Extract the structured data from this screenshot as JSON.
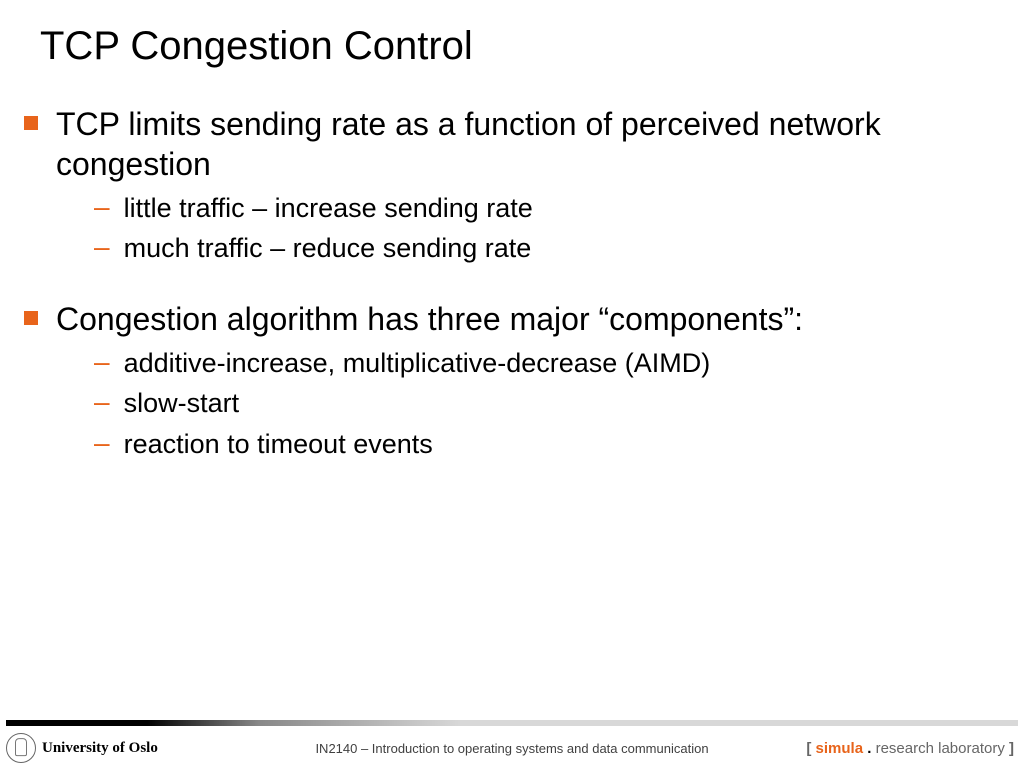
{
  "colors": {
    "accent": "#e8641b",
    "text": "#000000",
    "footer_text": "#404040",
    "background": "#ffffff"
  },
  "typography": {
    "title_fontsize": 40,
    "l1_fontsize": 32,
    "l2_fontsize": 27,
    "footer_fontsize": 13
  },
  "title": "TCP Congestion Control",
  "bullets": [
    {
      "text": "TCP limits sending rate as a function of perceived network congestion",
      "sub": [
        "little traffic – increase sending rate",
        "much traffic – reduce sending rate"
      ]
    },
    {
      "text": "Congestion algorithm has three major “components”:",
      "sub": [
        "additive-increase, multiplicative-decrease (AIMD)",
        "slow-start",
        "reaction to timeout events"
      ]
    }
  ],
  "footer": {
    "university": "University of Oslo",
    "course": "IN2140 – Introduction to operating systems and data communication",
    "lab_bracket_open": "[ ",
    "lab_simula": "simula",
    "lab_dot": " . ",
    "lab_research": "research laboratory",
    "lab_bracket_close": " ]"
  }
}
